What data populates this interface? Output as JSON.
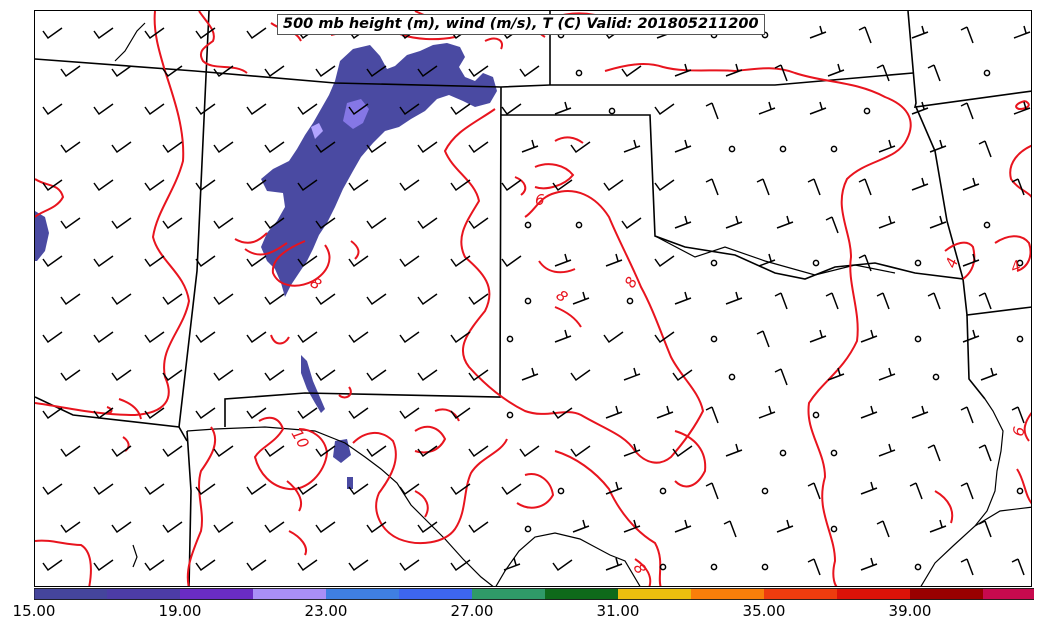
{
  "title": "500 mb height (m), wind (m/s), T (C) Valid: 201805211200",
  "colorbar": {
    "colors": [
      "#45459c",
      "#4c3ca6",
      "#6a2cc4",
      "#a98ff7",
      "#3f7fe2",
      "#3d66ee",
      "#2f9a68",
      "#0e6a1a",
      "#ecbe0e",
      "#f97e0a",
      "#ee3c0e",
      "#dc1208",
      "#990000",
      "#c70a4e",
      "#f7479b",
      "#fb9ed0"
    ],
    "tick_labels": [
      "15.00",
      "19.00",
      "23.00",
      "27.00",
      "31.00",
      "35.00",
      "39.00"
    ],
    "min": 15,
    "max": 43,
    "step": 2,
    "extend": "max"
  },
  "contour_labels": [
    "6",
    "8",
    "8",
    "8",
    "8",
    "10",
    "4",
    "4",
    "6"
  ]
}
